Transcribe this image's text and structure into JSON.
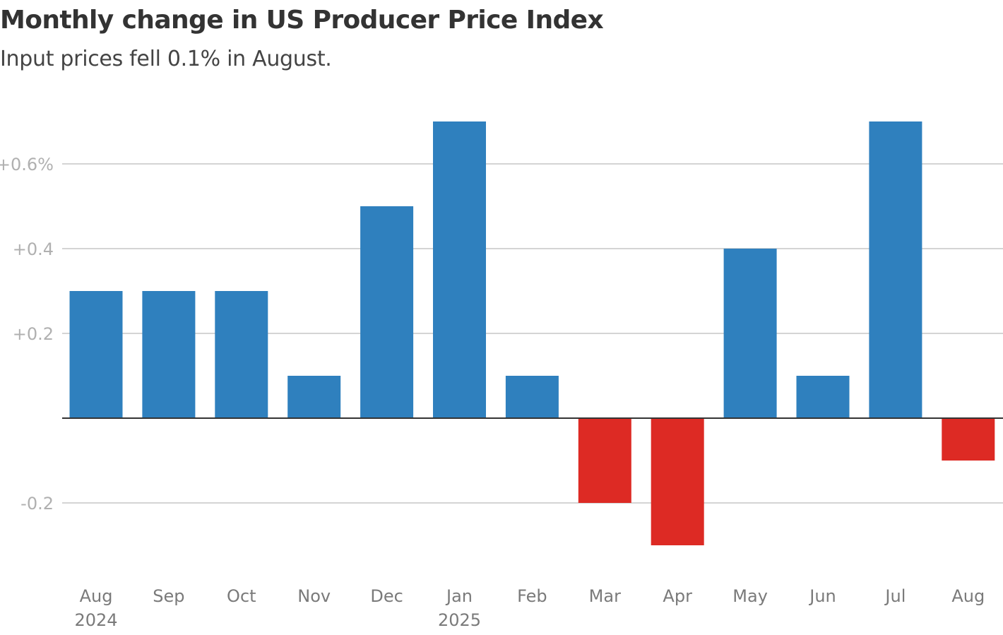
{
  "title": "Monthly change in US Producer Price Index",
  "subtitle": "Input prices fell 0.1% in August.",
  "chart_data": {
    "type": "bar",
    "title": "Monthly change in US Producer Price Index",
    "subtitle": "Input prices fell 0.1% in August.",
    "categories": [
      "Aug",
      "Sep",
      "Oct",
      "Nov",
      "Dec",
      "Jan",
      "Feb",
      "Mar",
      "Apr",
      "May",
      "Jun",
      "Jul",
      "Aug"
    ],
    "year_labels": [
      "2024",
      "",
      "",
      "",
      "",
      "2025",
      "",
      "",
      "",
      "",
      "",
      "",
      ""
    ],
    "values": [
      0.3,
      0.3,
      0.3,
      0.1,
      0.5,
      0.7,
      0.1,
      -0.2,
      -0.3,
      0.4,
      0.1,
      0.7,
      -0.1
    ],
    "y_ticks": [
      {
        "value": 0.6,
        "label": "+0.6%"
      },
      {
        "value": 0.4,
        "label": "+0.4"
      },
      {
        "value": 0.2,
        "label": "+0.2"
      },
      {
        "value": -0.2,
        "label": "-0.2"
      }
    ],
    "ylim": [
      -0.38,
      0.75
    ],
    "xlabel": "",
    "ylabel": "",
    "grid": true,
    "colors": {
      "positive": "#2f80be",
      "negative": "#dd2a24",
      "grid": "#d4d4d4",
      "zero_line": "#333333"
    }
  }
}
